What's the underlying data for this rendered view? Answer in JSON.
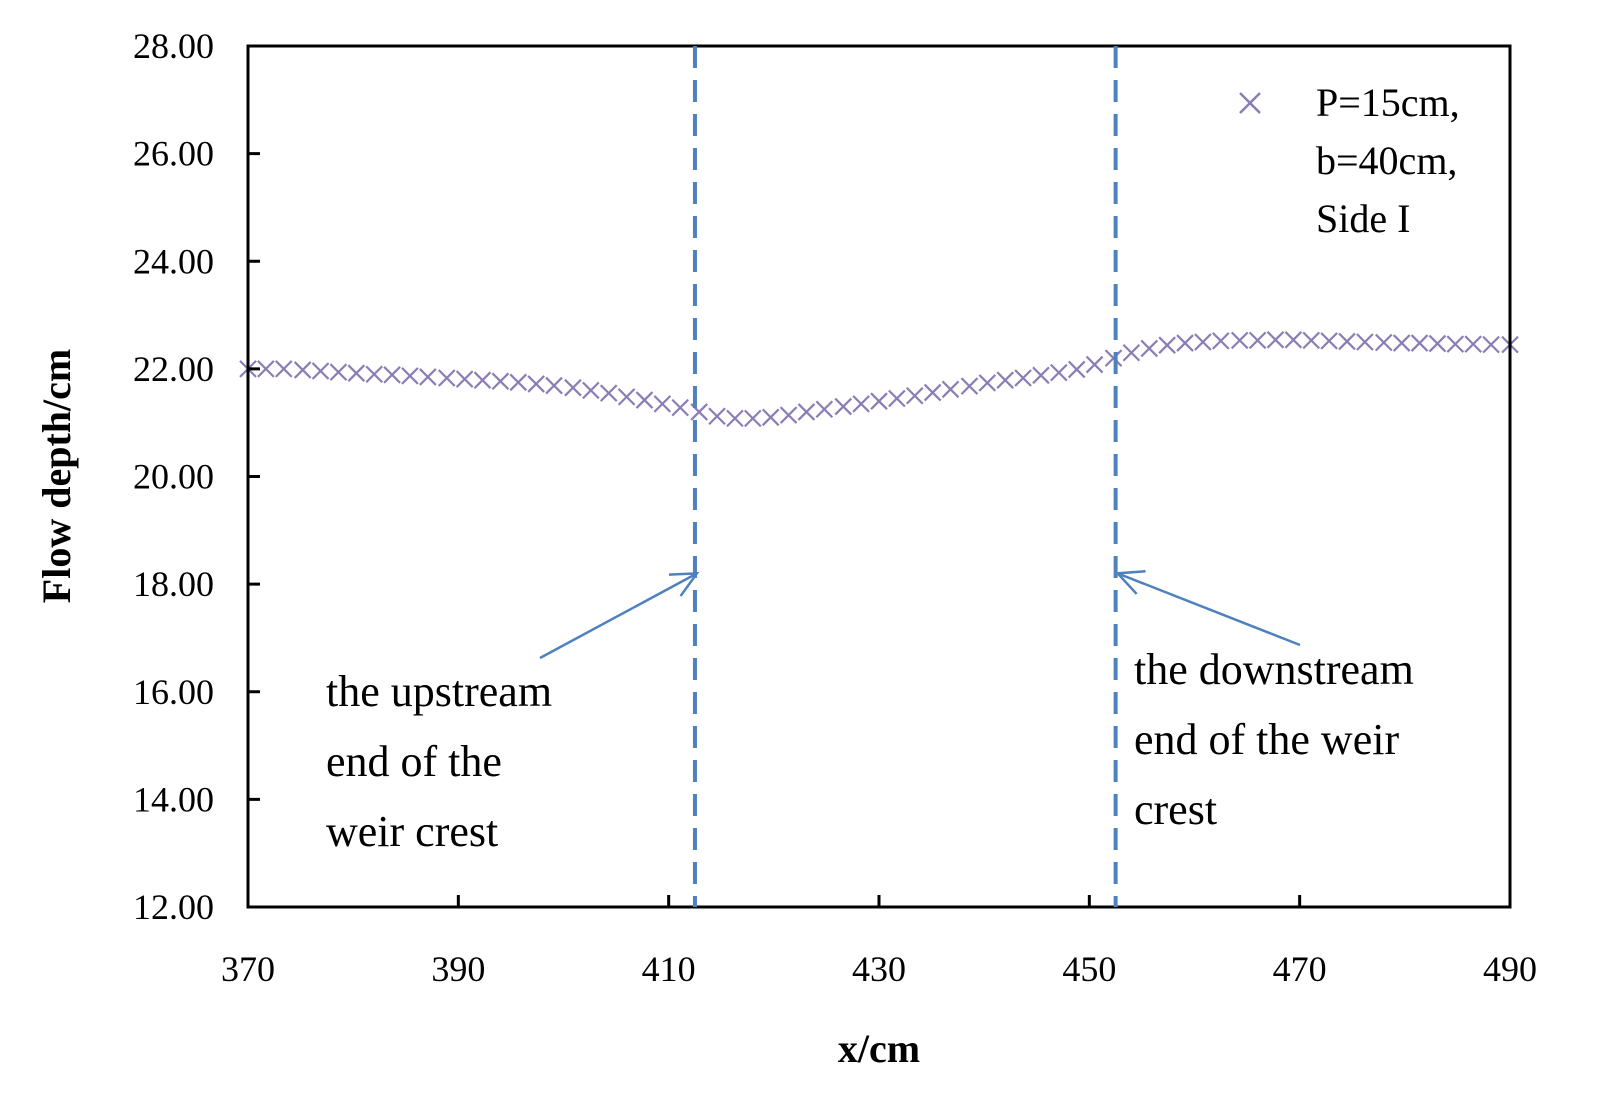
{
  "chart_data": {
    "type": "scatter",
    "xlabel": "x/cm",
    "ylabel": "Flow depth/cm",
    "xlim": [
      370,
      490
    ],
    "ylim": [
      12,
      28
    ],
    "x_ticks": [
      "370",
      "390",
      "410",
      "430",
      "450",
      "470",
      "490"
    ],
    "y_ticks": [
      "12.00",
      "14.00",
      "16.00",
      "18.00",
      "20.00",
      "22.00",
      "24.00",
      "26.00",
      "28.00"
    ],
    "grid": false,
    "legend_position": "top-right",
    "legend_lines": [
      "P=15cm,",
      "b=40cm,",
      "Side I"
    ],
    "marker": "x",
    "marker_color": "#8a7db5",
    "reference_line_color": "#4f81bd",
    "series": [
      {
        "x": [
          370,
          371.7,
          373.4,
          375.2,
          376.9,
          378.6,
          380.3,
          382,
          383.7,
          385.4,
          387.1,
          388.9,
          390.6,
          392.3,
          394,
          395.7,
          397.4,
          399.1,
          400.9,
          402.6,
          404.3,
          406,
          407.7,
          409.4,
          411.1,
          412.9,
          414.6,
          416.3,
          418,
          419.7,
          421.4,
          423.1,
          424.8,
          426.6,
          428.3,
          430,
          431.7,
          433.4,
          435.1,
          436.8,
          438.6,
          440.3,
          442,
          443.7,
          445.4,
          447.1,
          448.8,
          450.5,
          452.3,
          454,
          455.7,
          457.4,
          459.1,
          460.8,
          462.5,
          464.3,
          466,
          467.7,
          469.4,
          471.1,
          472.8,
          474.5,
          476.2,
          478,
          479.7,
          481.4,
          483.1,
          484.8,
          486.5,
          488.2,
          490
        ],
        "y": [
          22.0,
          22.0,
          22.0,
          21.98,
          21.96,
          21.94,
          21.92,
          21.9,
          21.89,
          21.87,
          21.85,
          21.83,
          21.81,
          21.79,
          21.77,
          21.75,
          21.72,
          21.69,
          21.65,
          21.6,
          21.55,
          21.48,
          21.42,
          21.35,
          21.28,
          21.2,
          21.12,
          21.08,
          21.08,
          21.1,
          21.14,
          21.2,
          21.25,
          21.3,
          21.35,
          21.4,
          21.45,
          21.5,
          21.56,
          21.62,
          21.68,
          21.74,
          21.79,
          21.83,
          21.88,
          21.93,
          21.99,
          22.08,
          22.2,
          22.3,
          22.38,
          22.44,
          22.48,
          22.5,
          22.52,
          22.53,
          22.53,
          22.54,
          22.54,
          22.53,
          22.52,
          22.51,
          22.5,
          22.49,
          22.48,
          22.48,
          22.47,
          22.46,
          22.46,
          22.45,
          22.45
        ]
      }
    ],
    "reference_lines": [
      {
        "x": 412.5,
        "text": [
          "the upstream",
          "end of the",
          "weir crest"
        ]
      },
      {
        "x": 452.5,
        "text": [
          "the downstream",
          "end of the weir",
          "crest"
        ]
      }
    ]
  }
}
